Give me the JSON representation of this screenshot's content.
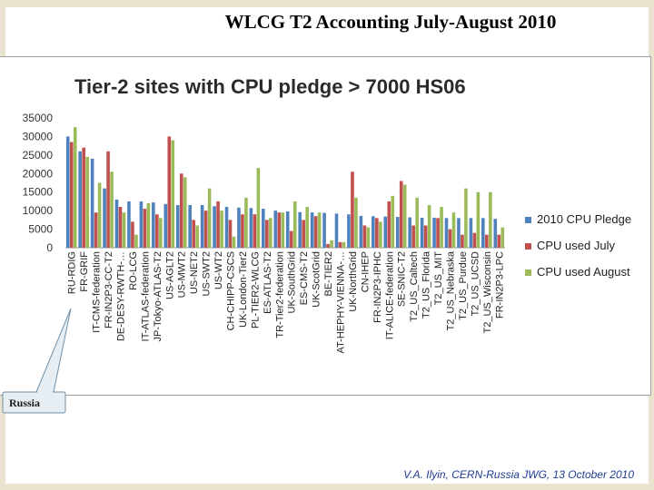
{
  "slide": {
    "title": "WLCG T2 Accounting July-August 2010",
    "footer": "V.A. Ilyin, CERN-Russia JWG, 13 October 2010",
    "callout": "Russia"
  },
  "colors": {
    "pledge": "#4f81bd",
    "july": "#c0504d",
    "august": "#9bbb59"
  },
  "chart_data": {
    "type": "bar",
    "title": "Tier-2 sites with CPU pledge > 7000 HS06",
    "xlabel": "",
    "ylabel": "",
    "ylim": [
      0,
      35000
    ],
    "yticks": [
      0,
      5000,
      10000,
      15000,
      20000,
      25000,
      30000,
      35000
    ],
    "grid": false,
    "legend_position": "right",
    "categories": [
      "RU-RDIG",
      "FR-GRIF",
      "IT-CMS-federation",
      "FR-IN2P3-CC-T2",
      "DE-DESY-RWTH-…",
      "RO-LCG",
      "IT-ATLAS-federation",
      "JP-Tokyo-ATLAS-T2",
      "US-AGLT2",
      "US-MWT2",
      "US-NET2",
      "US-SWT2",
      "US-WT2",
      "CH-CHIPP-CSCS",
      "UK-London-Tier2",
      "PL-TIER2-WLCG",
      "ES-ATLAS-T2",
      "TR-Tier2-federation",
      "UK-SouthGrid",
      "ES-CMS-T2",
      "UK-ScotGrid",
      "BE-TIER2",
      "AT-HEPHY-VIENNA-…",
      "UK-NorthGrid",
      "CN-IHEP",
      "FR-IN2P3-IPHC",
      "IT-ALICE-federation",
      "SE-SNIC-T2",
      "T2_US_Caltech",
      "T2_US_Florida",
      "T2_US_MIT",
      "T2_US_Nebraska",
      "T2_US_Purdue",
      "T2_US_UCSD",
      "T2_US_Wisconsin",
      "FR-IN2P3-LPC"
    ],
    "series": [
      {
        "name": "2010 CPU Pledge",
        "values": [
          30000,
          26000,
          24000,
          16000,
          13000,
          12500,
          12500,
          12200,
          11800,
          11500,
          11500,
          11500,
          11200,
          11000,
          10800,
          10700,
          10500,
          10000,
          9800,
          9600,
          9500,
          9400,
          9200,
          9000,
          8600,
          8500,
          8400,
          8300,
          8200,
          8100,
          8100,
          8000,
          8000,
          8000,
          8000,
          7800
        ]
      },
      {
        "name": "CPU used July",
        "values": [
          28500,
          27000,
          9500,
          26000,
          11000,
          7000,
          10500,
          9000,
          30000,
          20000,
          7500,
          10000,
          12500,
          7500,
          9000,
          9000,
          7500,
          9500,
          4500,
          7500,
          8500,
          1000,
          1500,
          20500,
          6000,
          8000,
          12500,
          18000,
          6000,
          6000,
          8000,
          5000,
          3500,
          4000,
          3500,
          3500
        ]
      },
      {
        "name": "CPU used August",
        "values": [
          32500,
          24500,
          17500,
          20500,
          9500,
          3500,
          12000,
          8000,
          29000,
          19000,
          6000,
          16000,
          10000,
          3000,
          13500,
          21500,
          8000,
          9500,
          12500,
          11000,
          9500,
          2000,
          1500,
          13500,
          5500,
          7000,
          14000,
          17000,
          13500,
          11500,
          11000,
          9500,
          16000,
          15000,
          15000,
          5500
        ]
      }
    ]
  }
}
